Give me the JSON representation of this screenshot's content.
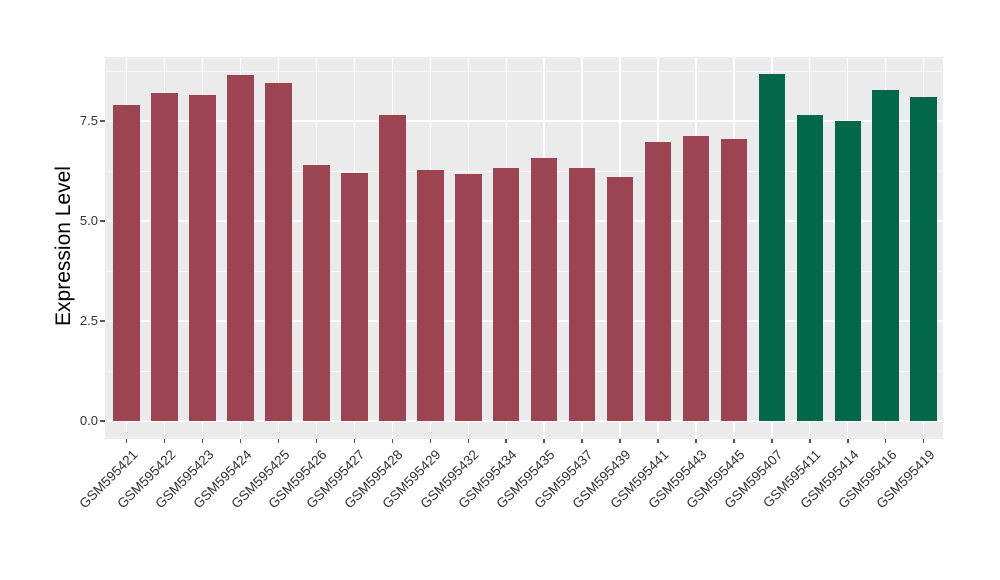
{
  "chart_data": {
    "type": "bar",
    "title": "",
    "xlabel": "",
    "ylabel": "Expression Level",
    "categories": [
      "GSM595421",
      "GSM595422",
      "GSM595423",
      "GSM595424",
      "GSM595425",
      "GSM595426",
      "GSM595427",
      "GSM595428",
      "GSM595429",
      "GSM595432",
      "GSM595434",
      "GSM595435",
      "GSM595437",
      "GSM595439",
      "GSM595441",
      "GSM595443",
      "GSM595445",
      "GSM595407",
      "GSM595411",
      "GSM595414",
      "GSM595416",
      "GSM595419"
    ],
    "values": [
      7.9,
      8.19,
      8.16,
      8.66,
      8.44,
      6.4,
      6.21,
      7.65,
      6.28,
      6.17,
      6.32,
      6.58,
      6.32,
      6.09,
      6.98,
      7.13,
      7.05,
      8.68,
      7.64,
      7.51,
      8.28,
      8.1
    ],
    "colors": [
      "#9D4452",
      "#9D4452",
      "#9D4452",
      "#9D4452",
      "#9D4452",
      "#9D4452",
      "#9D4452",
      "#9D4452",
      "#9D4452",
      "#9D4452",
      "#9D4452",
      "#9D4452",
      "#9D4452",
      "#9D4452",
      "#9D4452",
      "#9D4452",
      "#9D4452",
      "#026847",
      "#026847",
      "#026847",
      "#026847",
      "#026847"
    ],
    "groups": [
      {
        "name": "group-1",
        "color": "#9D4452",
        "count": 17
      },
      {
        "name": "group-2",
        "color": "#026847",
        "count": 5
      }
    ],
    "yticks": [
      0,
      2.5,
      5,
      7.5
    ],
    "ytick_labels": [
      "0.0",
      "2.5",
      "5.0",
      "7.5"
    ],
    "minor_gridlines": [
      1.25,
      3.75,
      6.25,
      8.75
    ],
    "ylim": [
      -0.45,
      9.1
    ],
    "grid": "on",
    "legend": "none",
    "panel_bg": "#EBEBEB",
    "grid_color": "#FFFFFF"
  }
}
